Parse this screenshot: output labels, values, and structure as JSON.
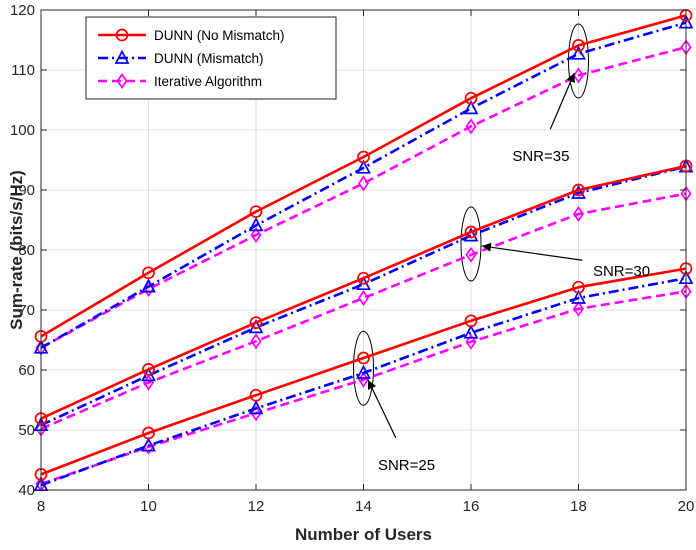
{
  "chart_data": {
    "type": "line",
    "xlabel": "Number of Users",
    "ylabel": "Sum-rate (bits/s/Hz)",
    "x": [
      8,
      10,
      12,
      14,
      16,
      18,
      20
    ],
    "xlim": [
      8,
      20
    ],
    "ylim": [
      40,
      120
    ],
    "xticks": [
      8,
      10,
      12,
      14,
      16,
      18,
      20
    ],
    "yticks": [
      40,
      50,
      60,
      70,
      80,
      90,
      100,
      110,
      120
    ],
    "grid": true,
    "legend_position": "top-left",
    "legend": [
      {
        "label": "DUNN (No Mismatch)",
        "color": "#ff0000",
        "marker": "circle",
        "dash": "solid"
      },
      {
        "label": "DUNN (Mismatch)",
        "color": "#0000ff",
        "marker": "triangle",
        "dash": "dashdot"
      },
      {
        "label": "Iterative Algorithm",
        "color": "#ff00ff",
        "marker": "diamond",
        "dash": "dashed"
      }
    ],
    "groups": [
      {
        "label": "SNR=35",
        "series": [
          {
            "legend_index": 0,
            "values": [
              65.6,
              76.2,
              86.4,
              95.5,
              105.3,
              114.1,
              119.1
            ]
          },
          {
            "legend_index": 1,
            "values": [
              63.7,
              73.9,
              84.1,
              93.7,
              103.6,
              112.7,
              117.9
            ]
          },
          {
            "legend_index": 2,
            "values": [
              63.7,
              73.5,
              82.5,
              91.1,
              100.6,
              109.1,
              113.8
            ]
          }
        ]
      },
      {
        "label": "SNR=30",
        "series": [
          {
            "legend_index": 0,
            "values": [
              51.9,
              60.1,
              67.9,
              75.3,
              83.0,
              90.0,
              94.0
            ]
          },
          {
            "legend_index": 1,
            "values": [
              50.8,
              59.1,
              67.1,
              74.3,
              82.4,
              89.5,
              93.9
            ]
          },
          {
            "legend_index": 2,
            "values": [
              50.2,
              57.9,
              64.8,
              72.0,
              79.2,
              86.0,
              89.4
            ]
          }
        ]
      },
      {
        "label": "SNR=25",
        "series": [
          {
            "legend_index": 0,
            "values": [
              42.6,
              49.5,
              55.8,
              62.0,
              68.2,
              73.8,
              76.9
            ]
          },
          {
            "legend_index": 1,
            "values": [
              40.8,
              47.4,
              53.6,
              59.5,
              66.2,
              72.0,
              75.3
            ]
          },
          {
            "legend_index": 2,
            "values": [
              41.0,
              47.2,
              52.8,
              58.4,
              64.7,
              70.2,
              73.1
            ]
          }
        ]
      }
    ],
    "annotations": [
      {
        "group_index": 0,
        "text": "SNR=35",
        "ellipse_at": {
          "x": 18,
          "y": 111.5
        },
        "text_at": {
          "x": 17.3,
          "y": 94.8
        }
      },
      {
        "group_index": 1,
        "text": "SNR=30",
        "ellipse_at": {
          "x": 16,
          "y": 81.0
        },
        "text_at": {
          "x": 18.8,
          "y": 75.7
        }
      },
      {
        "group_index": 2,
        "text": "SNR=25",
        "ellipse_at": {
          "x": 14,
          "y": 60.3
        },
        "text_at": {
          "x": 14.8,
          "y": 43.3
        }
      }
    ]
  }
}
